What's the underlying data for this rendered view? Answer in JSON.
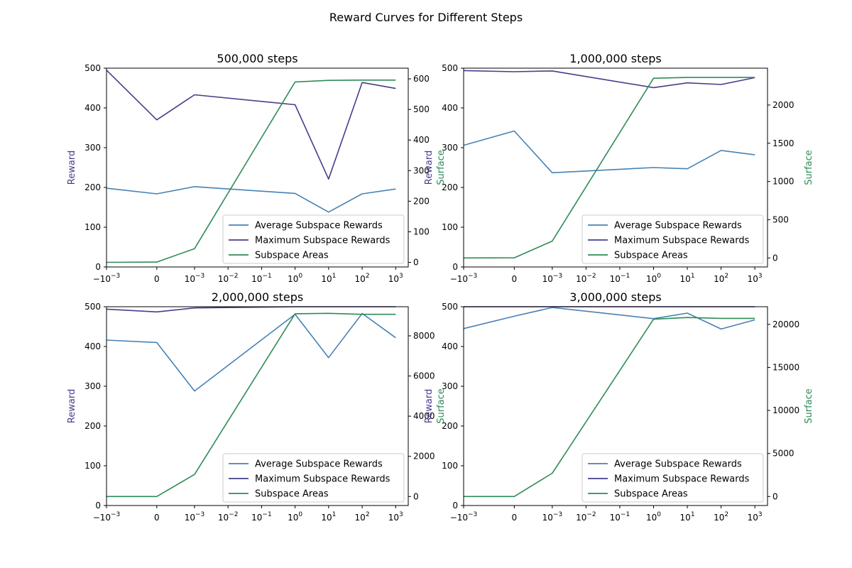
{
  "figure_title": "Reward Curves for Different Steps",
  "colors": {
    "average": "#4682b4",
    "maximum": "#483d8b",
    "area": "#2e8b57"
  },
  "chart_data": [
    {
      "type": "line",
      "title": "500,000 steps",
      "x": [
        "−10⁻³",
        "0",
        "10⁻³",
        "10⁰",
        "10¹",
        "10²",
        "10³"
      ],
      "x_tick_labels": [
        "−10⁻³",
        "0",
        "10⁻³",
        "10⁻²",
        "10⁻¹",
        "10⁰",
        "10¹",
        "10²",
        "10³"
      ],
      "x_scale": "symlog",
      "ylabel": "Reward",
      "y2label": "Surface",
      "ylim": [
        0,
        500
      ],
      "y_ticks": [
        0,
        100,
        200,
        300,
        400,
        500
      ],
      "y2lim": [
        -15,
        635
      ],
      "y2_ticks": [
        0,
        100,
        200,
        300,
        400,
        500,
        600
      ],
      "legend": "lower-right",
      "series": [
        {
          "name": "Average Subspace Rewards",
          "axis": "left",
          "values": [
            198,
            184,
            202,
            185,
            138,
            184,
            196
          ]
        },
        {
          "name": "Maximum Subspace Rewards",
          "axis": "left",
          "values": [
            495,
            370,
            433,
            408,
            221,
            464,
            449
          ]
        },
        {
          "name": "Subspace Areas",
          "axis": "right",
          "values": [
            0,
            1,
            45,
            590,
            595,
            596,
            596
          ]
        }
      ]
    },
    {
      "type": "line",
      "title": "1,000,000 steps",
      "x": [
        "−10⁻³",
        "0",
        "10⁻³",
        "10⁰",
        "10¹",
        "10²",
        "10³"
      ],
      "x_tick_labels": [
        "−10⁻³",
        "0",
        "10⁻³",
        "10⁻²",
        "10⁻¹",
        "10⁰",
        "10¹",
        "10²",
        "10³"
      ],
      "x_scale": "symlog",
      "ylabel": "Reward",
      "y2label": "Surface",
      "ylim": [
        0,
        500
      ],
      "y_ticks": [
        0,
        100,
        200,
        300,
        400,
        500
      ],
      "y2lim": [
        -118,
        2482
      ],
      "y2_ticks": [
        0,
        500,
        1000,
        1500,
        2000
      ],
      "legend": "lower-right",
      "series": [
        {
          "name": "Average Subspace Rewards",
          "axis": "left",
          "values": [
            306,
            342,
            237,
            250,
            247,
            293,
            282
          ]
        },
        {
          "name": "Maximum Subspace Rewards",
          "axis": "left",
          "values": [
            494,
            491,
            493,
            451,
            463,
            459,
            476
          ]
        },
        {
          "name": "Subspace Areas",
          "axis": "right",
          "values": [
            0,
            2,
            220,
            2350,
            2360,
            2360,
            2360
          ]
        }
      ]
    },
    {
      "type": "line",
      "title": "2,000,000 steps",
      "x": [
        "−10⁻³",
        "0",
        "10⁻³",
        "10⁰",
        "10¹",
        "10²",
        "10³"
      ],
      "x_tick_labels": [
        "−10⁻³",
        "0",
        "10⁻³",
        "10⁻²",
        "10⁻¹",
        "10⁰",
        "10¹",
        "10²",
        "10³"
      ],
      "x_scale": "symlog",
      "ylabel": "Reward",
      "y2label": "Surface",
      "ylim": [
        0,
        500
      ],
      "y_ticks": [
        0,
        100,
        200,
        300,
        400,
        500
      ],
      "y2lim": [
        -450,
        9450
      ],
      "y2_ticks": [
        0,
        2000,
        4000,
        6000,
        8000
      ],
      "legend": "lower-right",
      "series": [
        {
          "name": "Average Subspace Rewards",
          "axis": "left",
          "values": [
            416,
            410,
            288,
            481,
            372,
            483,
            422
          ]
        },
        {
          "name": "Maximum Subspace Rewards",
          "axis": "left",
          "values": [
            494,
            487,
            497,
            500,
            500,
            500,
            500
          ]
        },
        {
          "name": "Subspace Areas",
          "axis": "right",
          "values": [
            0,
            0,
            1100,
            9100,
            9120,
            9070,
            9070
          ]
        }
      ]
    },
    {
      "type": "line",
      "title": "3,000,000 steps",
      "x": [
        "−10⁻³",
        "0",
        "10⁻³",
        "10⁰",
        "10¹",
        "10²",
        "10³"
      ],
      "x_tick_labels": [
        "−10⁻³",
        "0",
        "10⁻³",
        "10⁻²",
        "10⁻¹",
        "10⁰",
        "10¹",
        "10²",
        "10³"
      ],
      "x_scale": "symlog",
      "ylabel": "Reward",
      "y2label": "Surface",
      "ylim": [
        0,
        500
      ],
      "y_ticks": [
        0,
        100,
        200,
        300,
        400,
        500
      ],
      "y2lim": [
        -1050,
        22050
      ],
      "y2_ticks": [
        0,
        5000,
        10000,
        15000,
        20000
      ],
      "legend": "lower-right",
      "series": [
        {
          "name": "Average Subspace Rewards",
          "axis": "left",
          "values": [
            445,
            476,
            498,
            470,
            484,
            444,
            467
          ]
        },
        {
          "name": "Maximum Subspace Rewards",
          "axis": "left",
          "values": [
            500,
            500,
            500,
            500,
            500,
            500,
            500
          ]
        },
        {
          "name": "Subspace Areas",
          "axis": "right",
          "values": [
            0,
            0,
            2700,
            20600,
            20800,
            20700,
            20700
          ]
        }
      ]
    }
  ]
}
